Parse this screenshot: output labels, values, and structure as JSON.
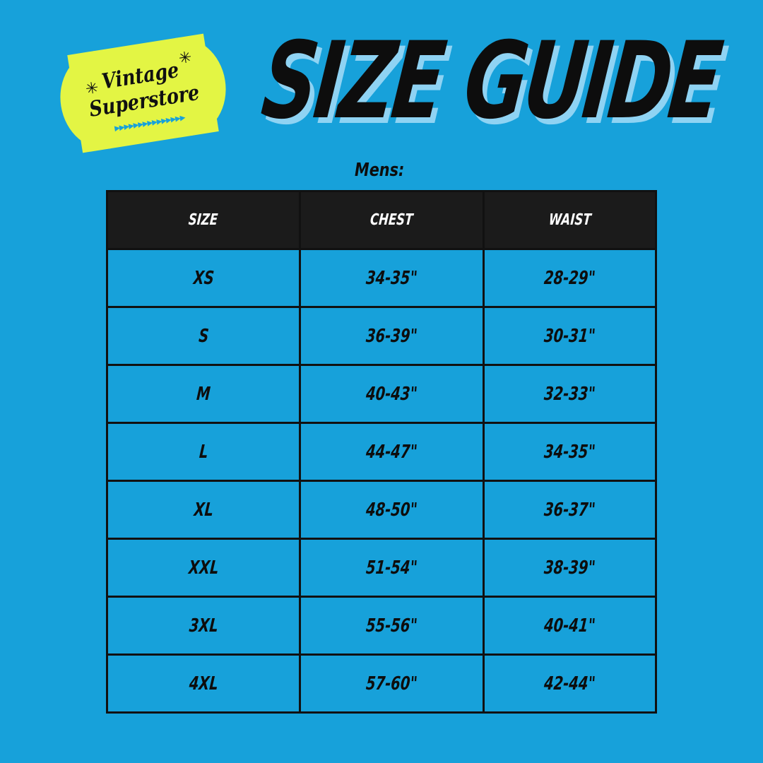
{
  "logo": {
    "line1": "Vintage",
    "line2": "Superstore",
    "color": "#e3f544"
  },
  "title": "SIZE GUIDE",
  "section_label": "Mens:",
  "colors": {
    "background": "#17a1da",
    "header": "#1b1b1b",
    "title_shadow": "#8fd3f3"
  },
  "table": {
    "headers": [
      "SIZE",
      "CHEST",
      "WAIST"
    ],
    "rows": [
      [
        "XS",
        "34-35\"",
        "28-29\""
      ],
      [
        "S",
        "36-39\"",
        "30-31\""
      ],
      [
        "M",
        "40-43\"",
        "32-33\""
      ],
      [
        "L",
        "44-47\"",
        "34-35\""
      ],
      [
        "XL",
        "48-50\"",
        "36-37\""
      ],
      [
        "XXL",
        "51-54\"",
        "38-39\""
      ],
      [
        "3XL",
        "55-56\"",
        "40-41\""
      ],
      [
        "4XL",
        "57-60\"",
        "42-44\""
      ]
    ]
  }
}
